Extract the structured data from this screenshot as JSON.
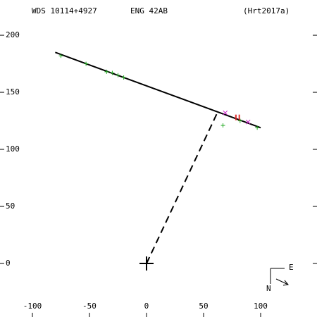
{
  "chart_data": {
    "type": "scatter",
    "header": [
      "WDS 10114+4927",
      "ENG  42AB",
      "(Hrt2017a)"
    ],
    "compass": [
      "E",
      "N"
    ],
    "xlim": [
      -128.4,
      149.4
    ],
    "ylim": [
      -46.9,
      230.9
    ],
    "xticks": [
      -100,
      -50,
      0,
      50,
      100
    ],
    "yticks": [
      0,
      50,
      100,
      150,
      200
    ],
    "series": [
      {
        "color": "#000000",
        "marker": "line",
        "x": [
          -80,
          100
        ],
        "values": [
          185,
          119
        ]
      },
      {
        "color": "#000000",
        "marker": "dashed",
        "x": [
          0,
          62
        ],
        "values": [
          0,
          132
        ]
      },
      {
        "color": "#000000",
        "marker": "big-plus",
        "x": [
          0
        ],
        "values": [
          0
        ]
      },
      {
        "color": "#22aa22",
        "marker": "plus",
        "x": [
          -75,
          -53,
          -35,
          -30,
          -25,
          -20,
          67,
          82,
          97
        ],
        "values": [
          182,
          175,
          168,
          167,
          165,
          163,
          121,
          125,
          119
        ]
      },
      {
        "color": "#cc22cc",
        "marker": "cross",
        "x": [
          69,
          89
        ],
        "values": [
          132,
          124
        ]
      },
      {
        "color": "#dd2222",
        "marker": "bar",
        "x": [
          78,
          81
        ],
        "values": [
          128,
          128
        ]
      }
    ]
  }
}
